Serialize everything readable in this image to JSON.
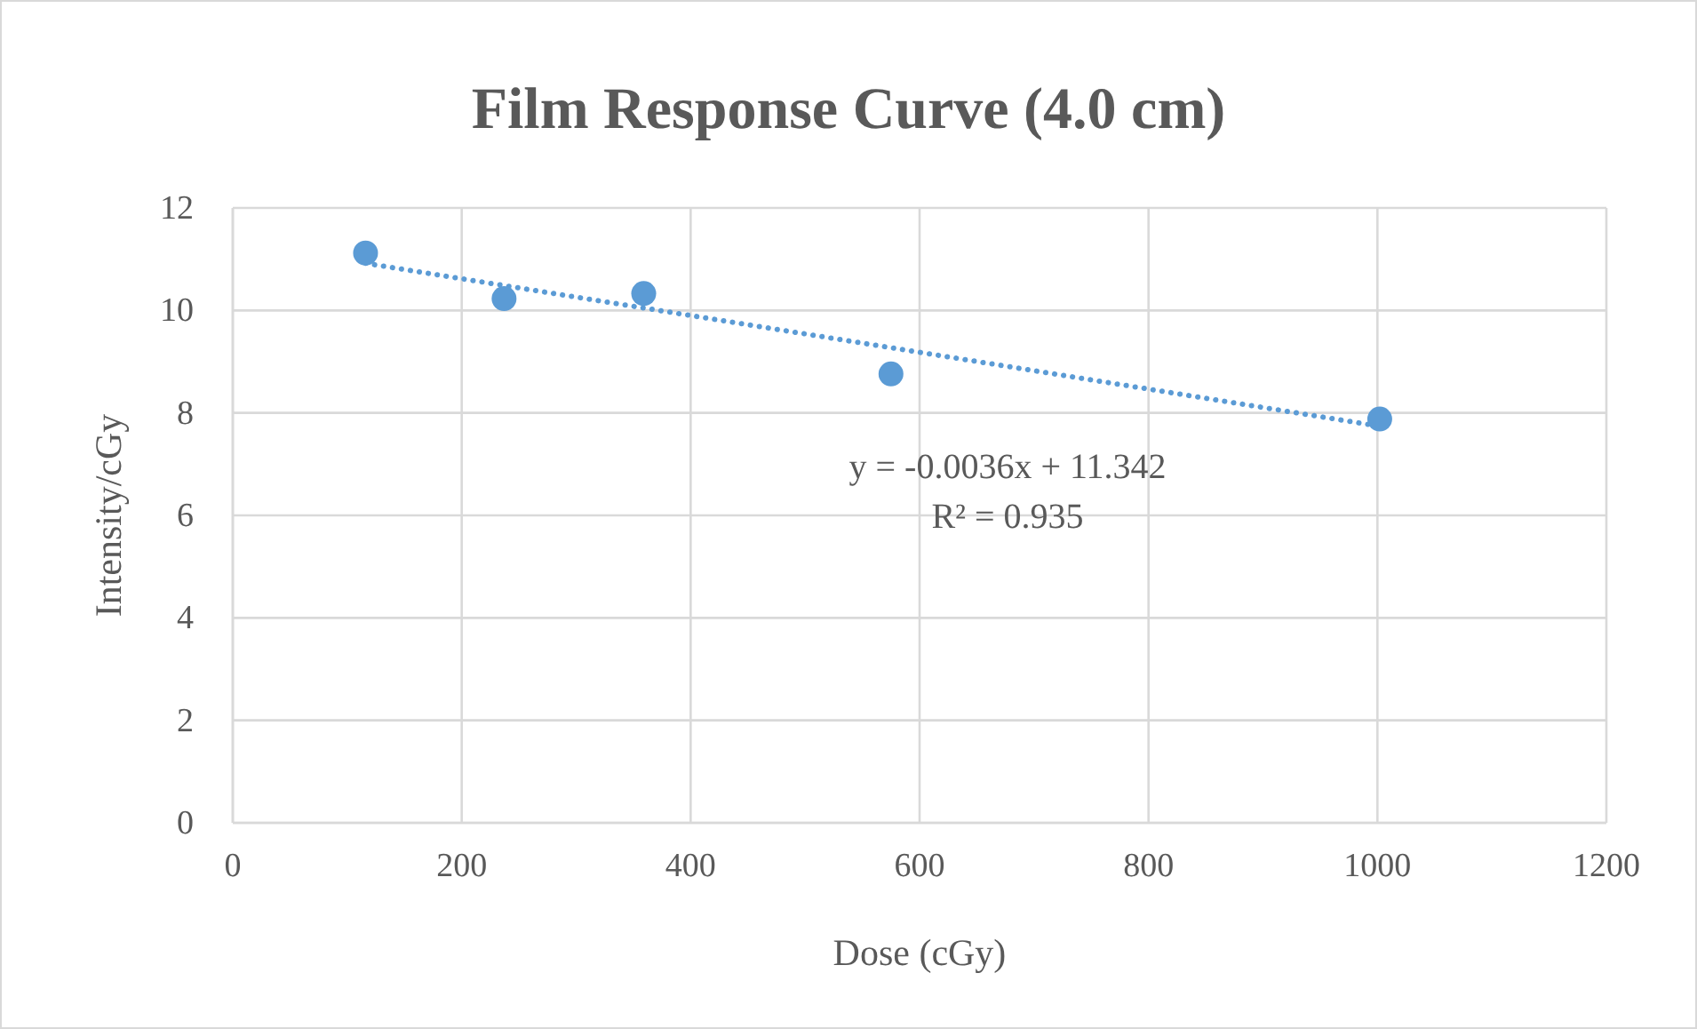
{
  "chart_data": {
    "type": "scatter",
    "title": "Film Response Curve (4.0 cm)",
    "xlabel": "Dose (cGy)",
    "ylabel": "Intensity/cGy",
    "xlim": [
      0,
      1200
    ],
    "xticks": [
      0,
      200,
      400,
      600,
      800,
      1000,
      1200
    ],
    "ylim": [
      0,
      12
    ],
    "yticks": [
      0,
      2,
      4,
      6,
      8,
      10,
      12
    ],
    "grid": true,
    "marker": "circle",
    "series": [
      {
        "color": "#5b9bd5",
        "x": [
          116,
          237,
          359,
          575,
          1002
        ],
        "values": [
          11.12,
          10.23,
          10.33,
          8.76,
          7.88
        ]
      },
      {
        "type": "line",
        "color": "#5b9bd5",
        "line_style": "dotted",
        "marker": "none",
        "x": [
          116,
          1002
        ],
        "values": [
          10.92,
          7.74
        ]
      }
    ],
    "annotations": [
      "y = -0.0036x + 11.342",
      "R² = 0.935"
    ]
  }
}
